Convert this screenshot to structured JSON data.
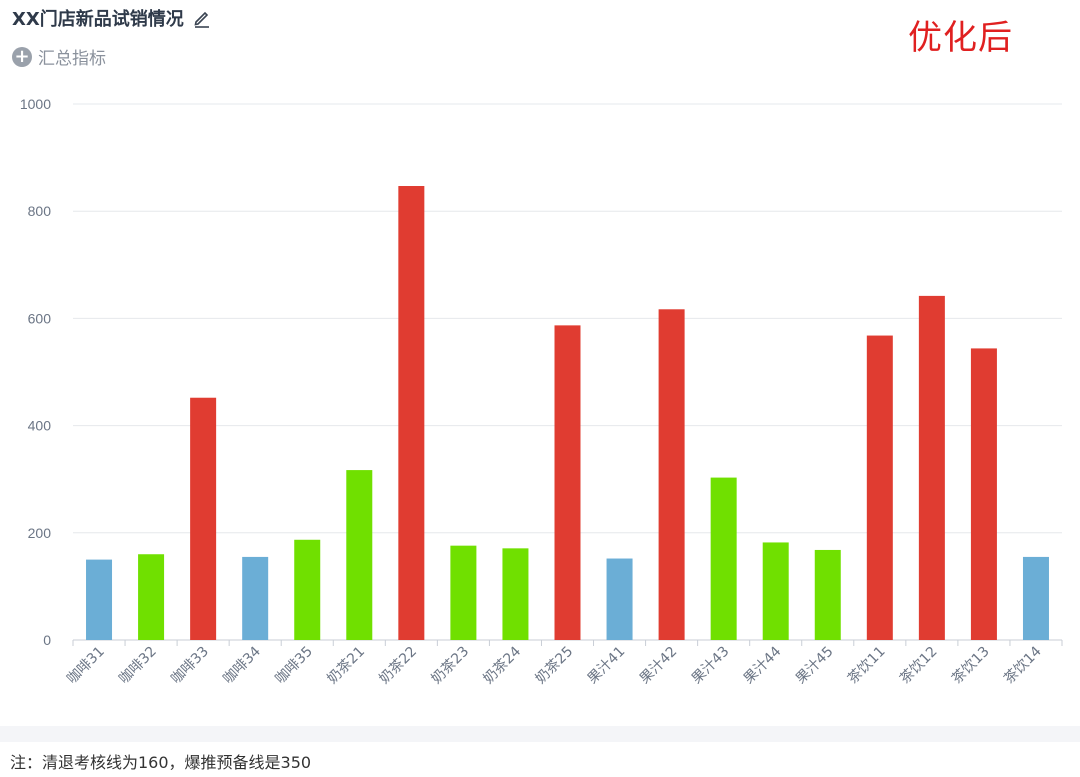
{
  "header": {
    "title": "XX门店新品试销情况",
    "annotation": "优化后",
    "summary_label": "汇总指标"
  },
  "icons": {
    "edit": "edit-icon",
    "add": "plus-circle-icon"
  },
  "footer": {
    "note": "注：清退考核线为160，爆推预备线是350"
  },
  "chart_data": {
    "type": "bar",
    "title": "",
    "xlabel": "",
    "ylabel": "",
    "ylim": [
      0,
      1000
    ],
    "yticks": [
      0,
      200,
      400,
      600,
      800,
      1000
    ],
    "grid": true,
    "categories": [
      "咖啡31",
      "咖啡32",
      "咖啡33",
      "咖啡34",
      "咖啡35",
      "奶茶21",
      "奶茶22",
      "奶茶23",
      "奶茶24",
      "奶茶25",
      "果汁41",
      "果汁42",
      "果汁43",
      "果汁44",
      "果汁45",
      "茶饮11",
      "茶饮12",
      "茶饮13",
      "茶饮14"
    ],
    "values": [
      150,
      160,
      452,
      155,
      187,
      317,
      847,
      176,
      171,
      587,
      152,
      617,
      303,
      182,
      168,
      568,
      642,
      544,
      155
    ],
    "color_rule": {
      "below_160": "#6baed6",
      "160_to_350": "#70e000",
      "above_350": "#e03c31"
    },
    "colors": {
      "blue": "#6baed6",
      "green": "#70e000",
      "red": "#e03c31",
      "grid": "#e6e8ec",
      "tick_text": "#6b7585"
    }
  }
}
